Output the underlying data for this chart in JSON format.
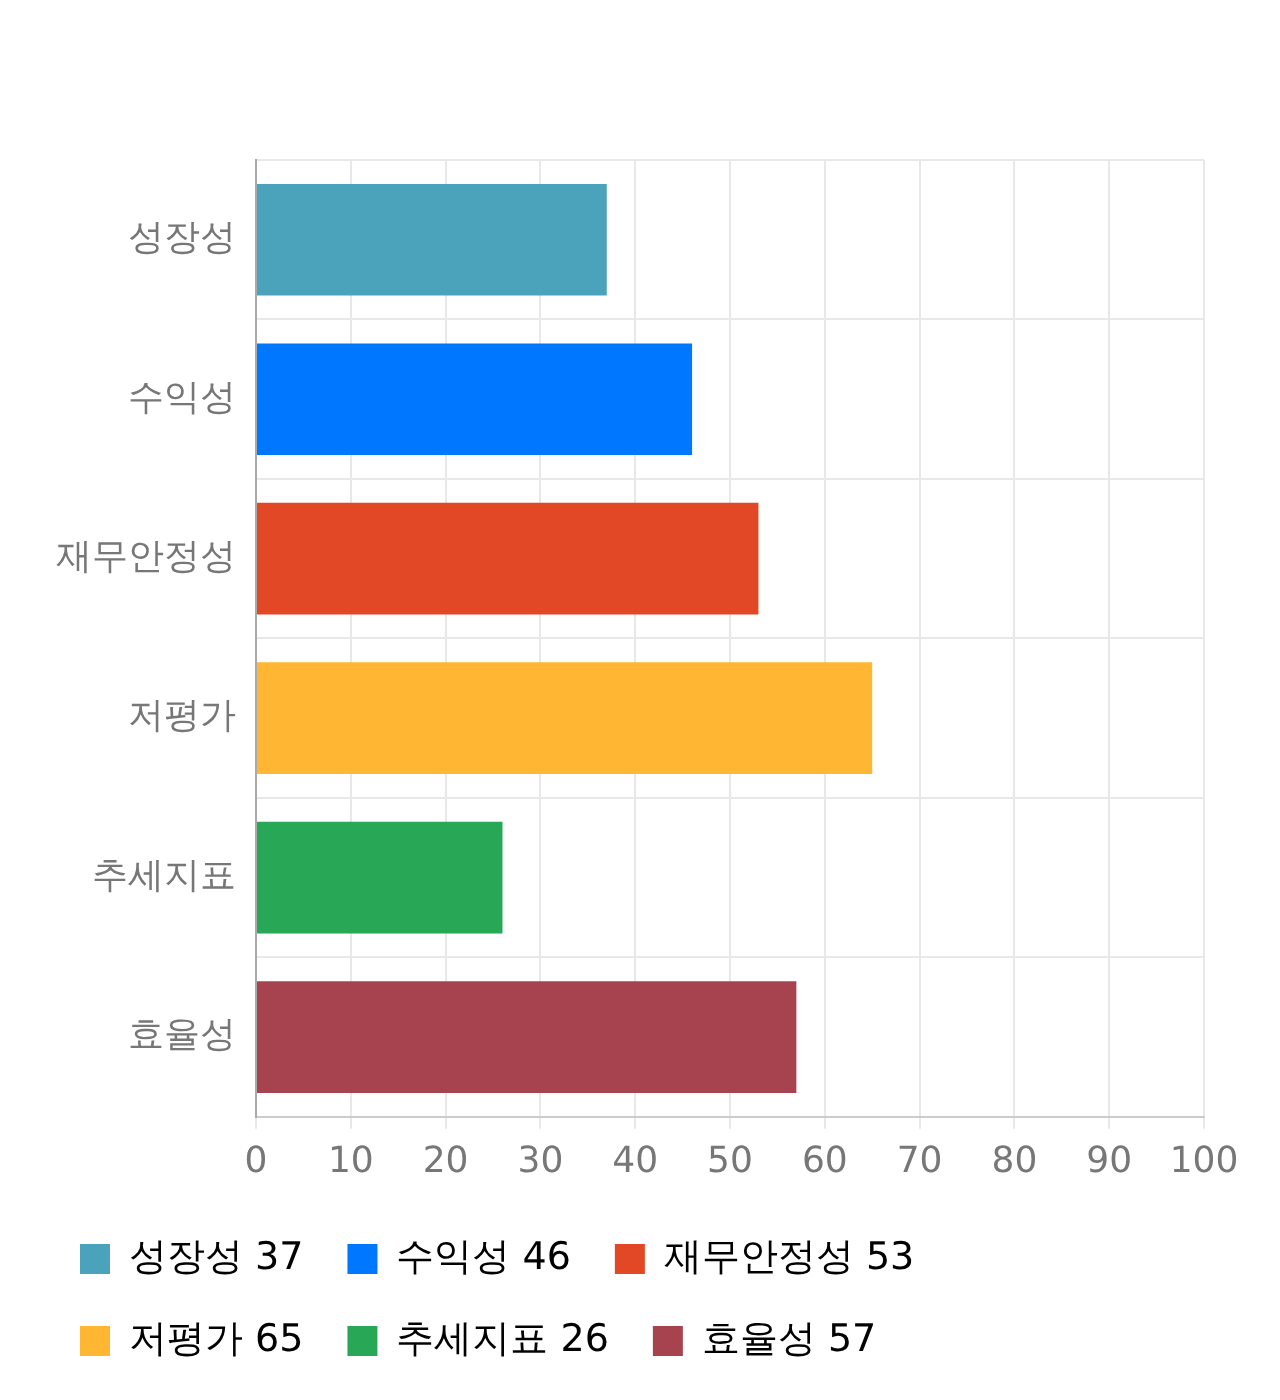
{
  "chart_data": {
    "type": "bar",
    "orientation": "horizontal",
    "categories": [
      "성장성",
      "수익성",
      "재무안정성",
      "저평가",
      "추세지표",
      "효율성"
    ],
    "series": [
      {
        "name": "성장성 37",
        "color": "#4aa3ba",
        "values": [
          37,
          null,
          null,
          null,
          null,
          null
        ]
      },
      {
        "name": "수익성 46",
        "color": "#0077ff",
        "values": [
          null,
          46,
          null,
          null,
          null,
          null
        ]
      },
      {
        "name": "재무안정성 53",
        "color": "#e24726",
        "values": [
          null,
          null,
          53,
          null,
          null,
          null
        ]
      },
      {
        "name": "저평가 65",
        "color": "#ffb733",
        "values": [
          null,
          null,
          null,
          65,
          null,
          null
        ]
      },
      {
        "name": "추세지표 26",
        "color": "#28a857",
        "values": [
          null,
          null,
          null,
          null,
          26,
          null
        ]
      },
      {
        "name": "효율성 57",
        "color": "#a6434f",
        "values": [
          null,
          null,
          null,
          null,
          null,
          57
        ]
      }
    ],
    "xlim": [
      0,
      100
    ],
    "xticks": [
      0,
      10,
      20,
      30,
      40,
      50,
      60,
      70,
      80,
      90,
      100
    ],
    "grid": true,
    "legend": "bottom"
  }
}
